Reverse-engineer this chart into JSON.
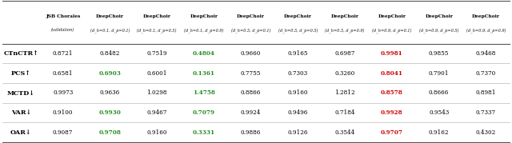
{
  "col_headers_line1": [
    "JSB Chorales",
    "DeepChoir",
    "DeepChoir",
    "DeepChoir",
    "DeepChoir",
    "DeepChoir",
    "DeepChoir",
    "DeepChoir",
    "DeepChoir",
    "DeepChoir"
  ],
  "col_headers_line2": [
    "(validation)",
    "(d_h=0.1, d_p=0.1)",
    "(d_h=0.1, d_p=0.5)",
    "(d_h=0.1, d_p=0.9)",
    "(d_h=0.5, d_p=0.1)",
    "(d_h=0.5, d_p=0.5)",
    "(d_h=0.5, d_p=0.9)",
    "(d_h=0.9, d_p=0.1)",
    "(d_h=0.9, d_p=0.5)",
    "(d_h=0.9, d_p=0.9)"
  ],
  "row_labels": [
    "CTnCTR↑",
    "PCS↑",
    "MCTD↓",
    "VAR↓",
    "OAR↓"
  ],
  "row_labels_plain": [
    "CTnCTR",
    "PCS",
    "MCTD",
    "VAR",
    "OAR"
  ],
  "row_arrows": [
    "↑",
    "↑",
    "↓",
    "↓",
    "↓"
  ],
  "data": [
    [
      0.8721,
      0.8482,
      0.7519,
      0.4804,
      0.966,
      0.9165,
      0.6987,
      0.9981,
      0.9855,
      0.9468
    ],
    [
      0.6581,
      0.6903,
      0.6001,
      0.1361,
      0.7755,
      0.7303,
      0.326,
      0.8041,
      0.7901,
      0.737
    ],
    [
      0.9973,
      0.9636,
      1.0298,
      1.4758,
      0.8866,
      0.916,
      1.2812,
      0.8578,
      0.8666,
      0.8981
    ],
    [
      0.91,
      0.993,
      0.9467,
      0.7079,
      0.9924,
      0.9496,
      0.7184,
      0.9928,
      0.9543,
      0.7337
    ],
    [
      0.9087,
      0.9708,
      0.916,
      0.3331,
      0.9886,
      0.9126,
      0.3544,
      0.9707,
      0.9162,
      0.4302
    ]
  ],
  "green_values": {
    "0_3": true,
    "1_3": true,
    "2_3": true,
    "3_3": true,
    "4_3": true,
    "1_1": true,
    "3_1": true,
    "4_1": true
  },
  "red_values": {
    "0_7": true,
    "1_7": true,
    "2_7": true,
    "3_7": true,
    "4_7": true
  },
  "bg_color": "#ffffff",
  "text_color": "#000000",
  "green_color": "#228B22",
  "red_color": "#cc0000",
  "header_fs": 4.2,
  "header_fs2": 3.6,
  "data_fs": 5.2,
  "label_fs": 5.8
}
